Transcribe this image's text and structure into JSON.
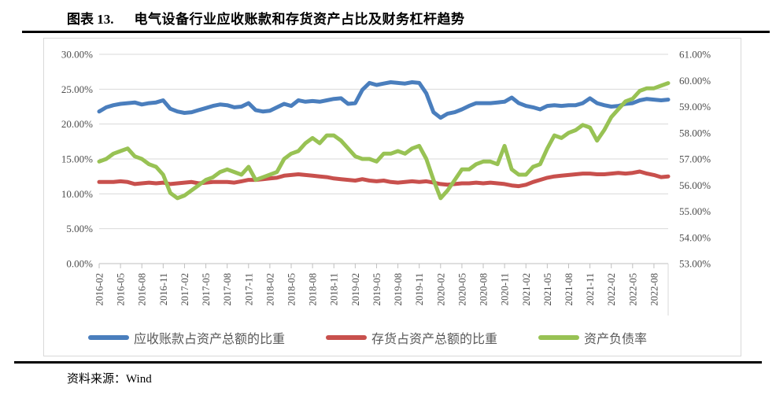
{
  "header": {
    "figure_label": "图表 13.",
    "figure_title": "电气设备行业应收账款和存货资产占比及财务杠杆趋势"
  },
  "footer": {
    "source": "资料来源：Wind"
  },
  "chart_data": {
    "type": "line",
    "title": "电气设备行业应收账款和存货资产占比及财务杠杆趋势",
    "grid": true,
    "legend_position": "bottom",
    "x_months": [
      "2016-02",
      "2016-03",
      "2016-04",
      "2016-05",
      "2016-06",
      "2016-07",
      "2016-08",
      "2016-09",
      "2016-10",
      "2016-11",
      "2016-12",
      "2017-01",
      "2017-02",
      "2017-03",
      "2017-04",
      "2017-05",
      "2017-06",
      "2017-07",
      "2017-08",
      "2017-09",
      "2017-10",
      "2017-11",
      "2017-12",
      "2018-01",
      "2018-02",
      "2018-03",
      "2018-04",
      "2018-05",
      "2018-06",
      "2018-07",
      "2018-08",
      "2018-09",
      "2018-10",
      "2018-11",
      "2018-12",
      "2019-01",
      "2019-02",
      "2019-03",
      "2019-04",
      "2019-05",
      "2019-06",
      "2019-07",
      "2019-08",
      "2019-09",
      "2019-10",
      "2019-11",
      "2019-12",
      "2020-01",
      "2020-02",
      "2020-03",
      "2020-04",
      "2020-05",
      "2020-06",
      "2020-07",
      "2020-08",
      "2020-09",
      "2020-10",
      "2020-11",
      "2020-12",
      "2021-01",
      "2021-02",
      "2021-03",
      "2021-04",
      "2021-05",
      "2021-06",
      "2021-07",
      "2021-08",
      "2021-09",
      "2021-10",
      "2021-11",
      "2021-12",
      "2022-01",
      "2022-02",
      "2022-03",
      "2022-04",
      "2022-05",
      "2022-06",
      "2022-07",
      "2022-08",
      "2022-09",
      "2022-10"
    ],
    "x_tick_labels": [
      "2016-02",
      "2016-05",
      "2016-08",
      "2016-11",
      "2017-02",
      "2017-05",
      "2017-08",
      "2017-11",
      "2018-02",
      "2018-05",
      "2018-08",
      "2018-11",
      "2019-02",
      "2019-05",
      "2019-08",
      "2019-11",
      "2020-02",
      "2020-05",
      "2020-08",
      "2020-11",
      "2021-02",
      "2021-05",
      "2021-08",
      "2021-11",
      "2022-02",
      "2022-05",
      "2022-08"
    ],
    "left_axis": {
      "min": 0,
      "max": 30,
      "ticks": [
        "0.00%",
        "5.00%",
        "10.00%",
        "15.00%",
        "20.00%",
        "25.00%",
        "30.00%"
      ]
    },
    "right_axis": {
      "min": 53,
      "max": 61,
      "ticks": [
        "53.00%",
        "54.00%",
        "55.00%",
        "56.00%",
        "57.00%",
        "58.00%",
        "59.00%",
        "60.00%",
        "61.00%"
      ]
    },
    "series": [
      {
        "name": "应收账款占资产总额的比重",
        "axis": "left",
        "color": "#4A7EBD",
        "values": [
          21.8,
          22.4,
          22.7,
          22.9,
          23.0,
          23.1,
          22.8,
          23.0,
          23.1,
          23.4,
          22.2,
          21.8,
          21.6,
          21.7,
          22.0,
          22.3,
          22.6,
          22.8,
          22.7,
          22.4,
          22.5,
          23.0,
          22.0,
          21.8,
          21.9,
          22.4,
          22.9,
          22.6,
          23.4,
          23.2,
          23.3,
          23.2,
          23.4,
          23.6,
          23.7,
          22.9,
          23.0,
          24.9,
          25.9,
          25.6,
          25.8,
          26.0,
          25.9,
          25.8,
          26.0,
          25.9,
          24.4,
          21.7,
          20.9,
          21.5,
          21.7,
          22.1,
          22.6,
          23.0,
          23.0,
          23.0,
          23.1,
          23.2,
          23.8,
          23.0,
          22.6,
          22.4,
          22.1,
          22.6,
          22.7,
          22.6,
          22.7,
          22.7,
          23.0,
          23.7,
          23.0,
          22.7,
          22.5,
          22.6,
          22.9,
          23.0,
          23.4,
          23.6,
          23.5,
          23.4,
          23.5
        ]
      },
      {
        "name": "存货占资产总额的比重",
        "axis": "left",
        "color": "#C8504D",
        "values": [
          11.7,
          11.7,
          11.7,
          11.8,
          11.7,
          11.4,
          11.5,
          11.6,
          11.5,
          11.6,
          11.4,
          11.5,
          11.6,
          11.7,
          11.5,
          11.6,
          11.7,
          11.7,
          11.7,
          11.6,
          11.8,
          12.0,
          12.0,
          12.1,
          12.2,
          12.3,
          12.6,
          12.7,
          12.8,
          12.7,
          12.6,
          12.5,
          12.4,
          12.2,
          12.1,
          12.0,
          11.9,
          12.1,
          11.9,
          11.8,
          11.9,
          11.7,
          11.6,
          11.7,
          11.8,
          11.7,
          11.8,
          11.6,
          11.4,
          11.3,
          11.4,
          11.5,
          11.5,
          11.6,
          11.5,
          11.6,
          11.5,
          11.4,
          11.2,
          11.1,
          11.3,
          11.7,
          12.0,
          12.3,
          12.5,
          12.6,
          12.7,
          12.8,
          12.9,
          12.9,
          12.8,
          12.8,
          12.9,
          13.0,
          12.9,
          13.0,
          13.2,
          12.9,
          12.7,
          12.4,
          12.5
        ]
      },
      {
        "name": "资产负债率",
        "axis": "right",
        "color": "#98C254",
        "values": [
          56.9,
          57.0,
          57.2,
          57.3,
          57.4,
          57.1,
          57.0,
          56.8,
          56.7,
          56.4,
          55.7,
          55.5,
          55.6,
          55.8,
          56.0,
          56.2,
          56.3,
          56.5,
          56.6,
          56.5,
          56.4,
          56.7,
          56.2,
          56.3,
          56.4,
          56.5,
          57.0,
          57.2,
          57.3,
          57.6,
          57.8,
          57.6,
          57.9,
          57.9,
          57.7,
          57.4,
          57.1,
          57.0,
          57.0,
          56.9,
          57.2,
          57.2,
          57.3,
          57.2,
          57.4,
          57.5,
          57.0,
          56.2,
          55.5,
          55.8,
          56.2,
          56.6,
          56.6,
          56.8,
          56.9,
          56.9,
          56.8,
          57.5,
          56.6,
          56.4,
          56.4,
          56.7,
          56.8,
          57.4,
          57.9,
          57.8,
          58.0,
          58.1,
          58.3,
          58.2,
          57.7,
          58.1,
          58.6,
          58.9,
          59.2,
          59.3,
          59.6,
          59.7,
          59.7,
          59.8,
          59.9
        ]
      }
    ]
  }
}
